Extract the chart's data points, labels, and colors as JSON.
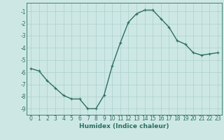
{
  "x": [
    0,
    1,
    2,
    3,
    4,
    5,
    6,
    7,
    8,
    9,
    10,
    11,
    12,
    13,
    14,
    15,
    16,
    17,
    18,
    19,
    20,
    21,
    22,
    23
  ],
  "y": [
    -5.7,
    -5.9,
    -6.7,
    -7.3,
    -7.9,
    -8.2,
    -8.2,
    -9.0,
    -9.0,
    -7.9,
    -5.5,
    -3.6,
    -1.9,
    -1.2,
    -0.9,
    -0.9,
    -1.6,
    -2.3,
    -3.4,
    -3.7,
    -4.4,
    -4.6,
    -4.5,
    -4.4
  ],
  "line_color": "#2d6e63",
  "marker": "+",
  "marker_size": 3,
  "line_width": 1.0,
  "bg_color": "#cde8e4",
  "grid_color": "#aacfcc",
  "xlabel": "Humidex (Indice chaleur)",
  "xlabel_fontsize": 6.5,
  "tick_fontsize": 5.5,
  "xlim": [
    -0.5,
    23.5
  ],
  "ylim": [
    -9.5,
    -0.3
  ],
  "yticks": [
    -1,
    -2,
    -3,
    -4,
    -5,
    -6,
    -7,
    -8,
    -9
  ],
  "xticks": [
    0,
    1,
    2,
    3,
    4,
    5,
    6,
    7,
    8,
    9,
    10,
    11,
    12,
    13,
    14,
    15,
    16,
    17,
    18,
    19,
    20,
    21,
    22,
    23
  ]
}
